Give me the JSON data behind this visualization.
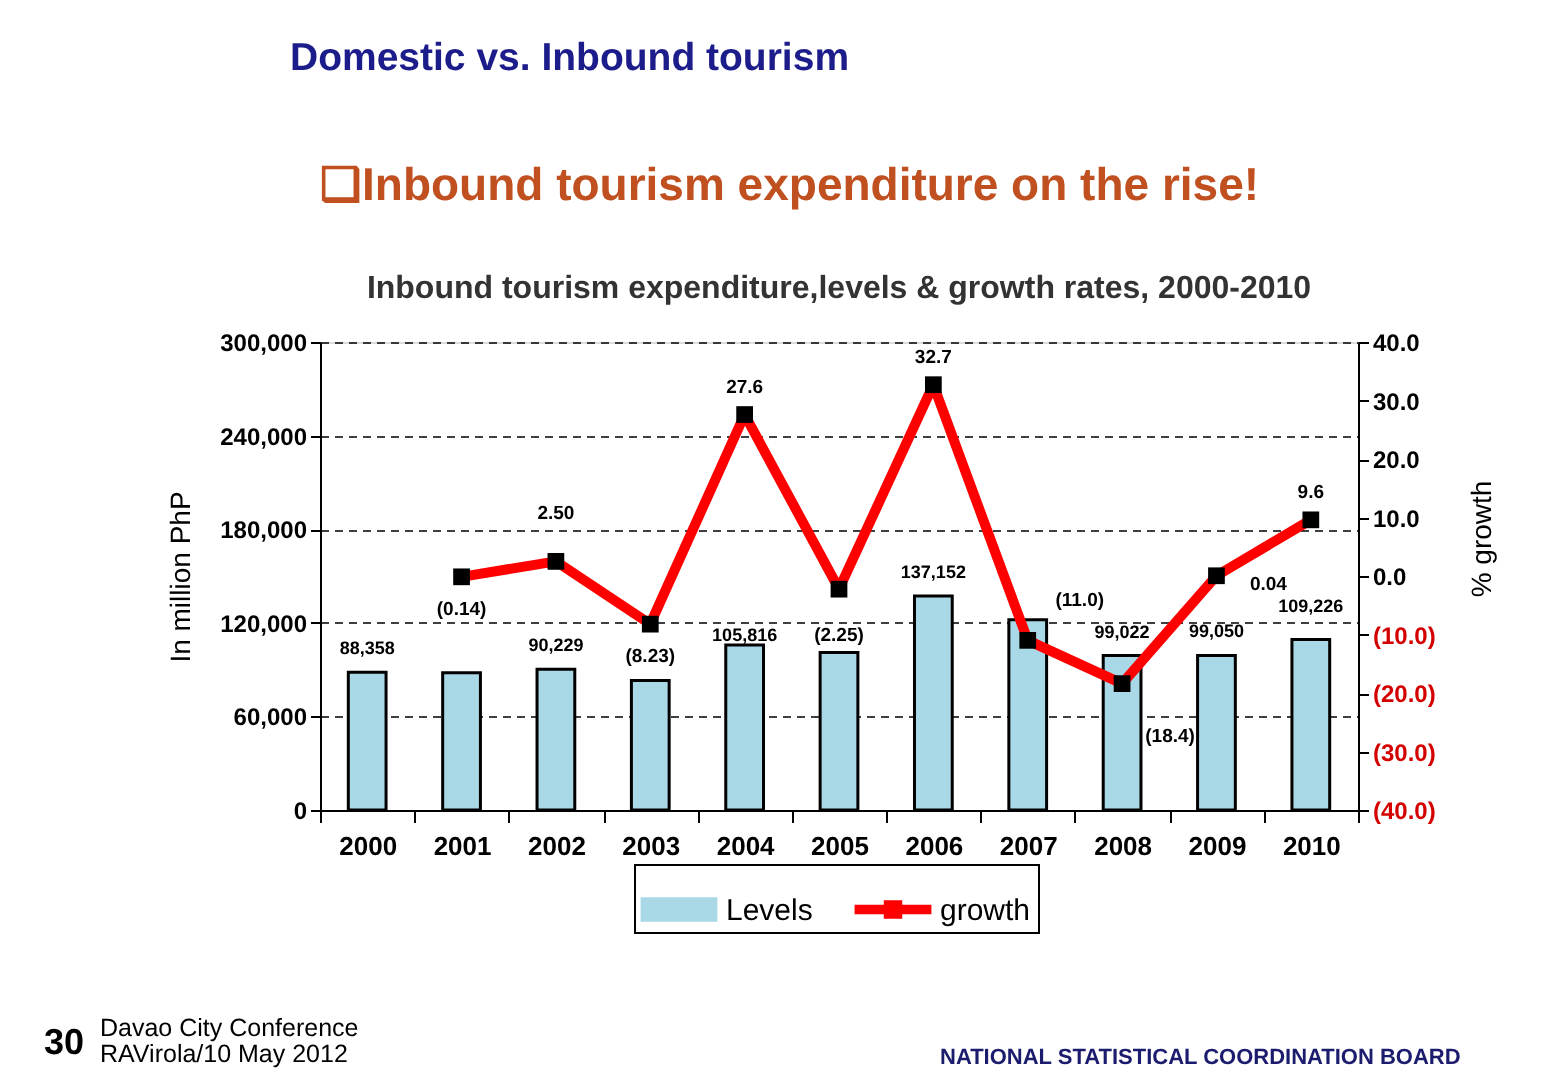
{
  "chart_data": {
    "type": "bar",
    "title": "Inbound tourism expenditure,levels & growth rates, 2000-2010",
    "ylabel": "In million PhP",
    "y2label": "% growth",
    "annotations": [
      "Domestic vs. Inbound tourism",
      "❑Inbound tourism expenditure on the rise!",
      "30",
      "Davao City Conference",
      "RAVirola/10 May 2012",
      "NATIONAL STATISTICAL COORDINATION BOARD"
    ],
    "categories": [
      "2000",
      "2001",
      "2002",
      "2003",
      "2004",
      "2005",
      "2006",
      "2007",
      "2008",
      "2009",
      "2010"
    ],
    "series": [
      {
        "name": "Levels",
        "color": "#a9d9e6",
        "values": [
          88358,
          88000,
          90229,
          83000,
          105816,
          101000,
          137152,
          122000,
          99022,
          99050,
          109226
        ],
        "value_labels": [
          "88,358",
          null,
          "90,229",
          null,
          "105,816",
          null,
          "137,152",
          null,
          "99,022",
          "99,050",
          "109,226"
        ]
      },
      {
        "name": "growth",
        "type": "line",
        "axis": "y2",
        "color": "#ff0000",
        "values": [
          null,
          -0.14,
          2.5,
          -8.23,
          27.6,
          -2.25,
          32.7,
          -11.0,
          -18.4,
          0.04,
          9.6
        ],
        "value_labels": [
          null,
          "(0.14)",
          "2.50",
          "(8.23)",
          "27.6",
          "(2.25)",
          "32.7",
          "(11.0)",
          "(18.4)",
          "0.04",
          "9.6"
        ]
      }
    ],
    "ylim": [
      0,
      300000
    ],
    "yticks": [
      0,
      {
        "value": 60000,
        "label": "60,000"
      },
      {
        "value": 120000,
        "label": "120,000"
      },
      {
        "value": 180000,
        "label": "180,000"
      },
      {
        "value": 240000,
        "label": "240,000"
      },
      {
        "value": 300000,
        "label": "300,000"
      }
    ],
    "y2lim": [
      -40,
      40
    ],
    "y2ticks": [
      {
        "value": -40,
        "label": "(40.0)"
      },
      {
        "value": -30,
        "label": "(30.0)"
      },
      {
        "value": -20,
        "label": "(20.0)"
      },
      {
        "value": -10,
        "label": "(10.0)"
      },
      {
        "value": 0,
        "label": "0.0"
      },
      {
        "value": 10,
        "label": "10.0"
      },
      {
        "value": 20,
        "label": "20.0"
      },
      {
        "value": 30,
        "label": "30.0"
      },
      {
        "value": 40,
        "label": "40.0"
      }
    ],
    "grid": "y",
    "legend": "bottom",
    "marker": "square"
  }
}
